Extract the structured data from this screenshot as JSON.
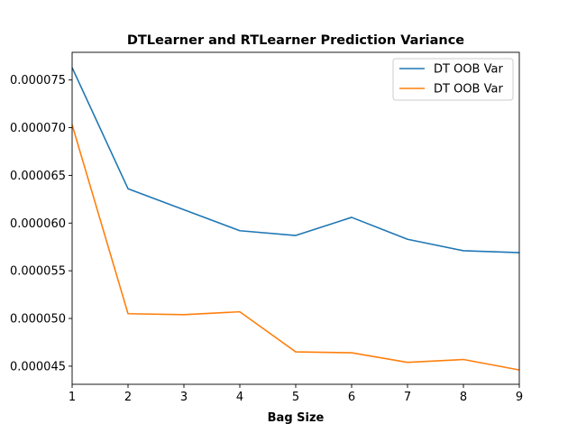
{
  "chart_data": {
    "type": "line",
    "title": "DTLearner and RTLearner Prediction Variance",
    "xlabel": "Bag Size",
    "ylabel": "",
    "x": [
      1,
      2,
      3,
      4,
      5,
      6,
      7,
      8,
      9
    ],
    "xlim": [
      1,
      9
    ],
    "ylim": [
      4.31e-05,
      7.79e-05
    ],
    "xticks": [
      1,
      2,
      3,
      4,
      5,
      6,
      7,
      8,
      9
    ],
    "yticks": [
      4.5e-05,
      5e-05,
      5.5e-05,
      6e-05,
      6.5e-05,
      7e-05,
      7.5e-05
    ],
    "ytick_labels": [
      "0.000045",
      "0.000050",
      "0.000055",
      "0.000060",
      "0.000065",
      "0.000070",
      "0.000075"
    ],
    "grid": false,
    "legend_position": "top-right",
    "series": [
      {
        "name": "DT OOB Var",
        "color": "#1f77b4",
        "values": [
          7.63e-05,
          6.36e-05,
          6.14e-05,
          5.92e-05,
          5.87e-05,
          6.06e-05,
          5.83e-05,
          5.71e-05,
          5.69e-05
        ]
      },
      {
        "name": "DT OOB Var",
        "color": "#ff7f0e",
        "values": [
          7.03e-05,
          5.05e-05,
          5.04e-05,
          5.07e-05,
          4.65e-05,
          4.64e-05,
          4.54e-05,
          4.57e-05,
          4.46e-05
        ]
      }
    ]
  }
}
